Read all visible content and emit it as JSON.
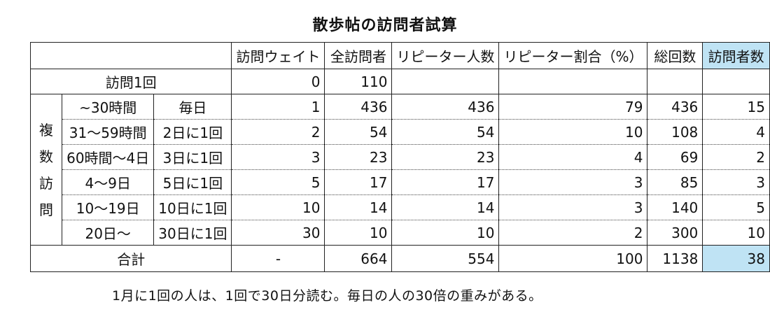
{
  "title": "散歩帖の訪問者試算",
  "header": {
    "weight": "訪問ウェイト",
    "total_visitors": "全訪問者",
    "repeaters": "リピーター人数",
    "repeater_ratio": "リピーター割合（%）",
    "total_count": "総回数",
    "visitor_count": "訪問者数"
  },
  "single": {
    "label": "訪問1回",
    "weight": "0",
    "total_visitors": "110"
  },
  "multi_label": [
    "複",
    "数",
    "訪",
    "問"
  ],
  "rows": [
    {
      "interval": "~30時間",
      "freq": "毎日",
      "weight": "1",
      "total_visitors": "436",
      "repeaters": "436",
      "ratio": "79",
      "total_count": "436",
      "visitors": "15"
    },
    {
      "interval": "31～59時間",
      "freq": "2日に1回",
      "weight": "2",
      "total_visitors": "54",
      "repeaters": "54",
      "ratio": "10",
      "total_count": "108",
      "visitors": "4"
    },
    {
      "interval": "60時間～4日",
      "freq": "3日に1回",
      "weight": "3",
      "total_visitors": "23",
      "repeaters": "23",
      "ratio": "4",
      "total_count": "69",
      "visitors": "2"
    },
    {
      "interval": "4～9日",
      "freq": "5日に1回",
      "weight": "5",
      "total_visitors": "17",
      "repeaters": "17",
      "ratio": "3",
      "total_count": "85",
      "visitors": "3"
    },
    {
      "interval": "10～19日",
      "freq": "10日に1回",
      "weight": "10",
      "total_visitors": "14",
      "repeaters": "14",
      "ratio": "3",
      "total_count": "140",
      "visitors": "5"
    },
    {
      "interval": "20日～",
      "freq": "30日に1回",
      "weight": "30",
      "total_visitors": "10",
      "repeaters": "10",
      "ratio": "2",
      "total_count": "300",
      "visitors": "10"
    }
  ],
  "total": {
    "label": "合計",
    "weight": "-",
    "total_visitors": "664",
    "repeaters": "554",
    "ratio": "100",
    "total_count": "1138",
    "visitors": "38"
  },
  "note": "1月に1回の人は、1回で30日分読む。毎日の人の30倍の重みがある。",
  "colors": {
    "highlight": "#bfe3f4"
  }
}
